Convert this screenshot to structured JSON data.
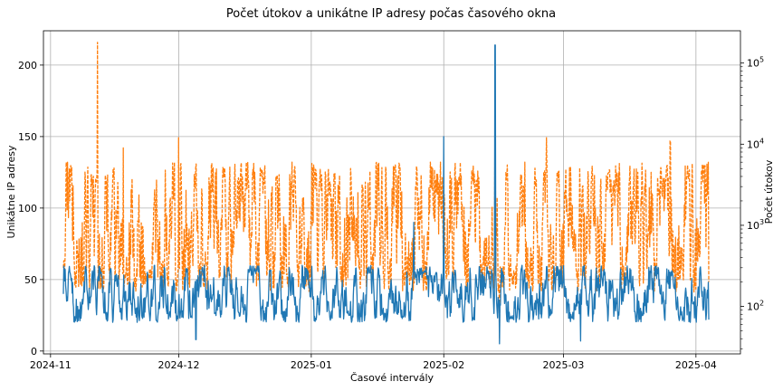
{
  "chart_data": {
    "type": "line",
    "title": "Počet útokov a unikátne IP adresy počas časového okna",
    "xlabel": "Časové intervály",
    "ylabel_left": "Unikátne IP adresy",
    "ylabel_right": "Počet útokov",
    "x_range": [
      "2024-11-04",
      "2025-04-04"
    ],
    "x_ticks": [
      {
        "date": "2024-11-01",
        "label": "2024-11"
      },
      {
        "date": "2024-12-01",
        "label": "2024-12"
      },
      {
        "date": "2025-01-01",
        "label": "2025-01"
      },
      {
        "date": "2025-02-01",
        "label": "2025-02"
      },
      {
        "date": "2025-03-01",
        "label": "2025-03"
      },
      {
        "date": "2025-04-01",
        "label": "2025-04"
      }
    ],
    "ylim_left": [
      -2,
      224
    ],
    "yticks_left": [
      0,
      50,
      100,
      150,
      200
    ],
    "yscale_right": "log",
    "ylim_right": [
      26,
      250000
    ],
    "yticks_right": [
      {
        "value": 100,
        "base": "10",
        "exp": "2"
      },
      {
        "value": 1000,
        "base": "10",
        "exp": "3"
      },
      {
        "value": 10000,
        "base": "10",
        "exp": "4"
      },
      {
        "value": 100000,
        "base": "10",
        "exp": "5"
      }
    ],
    "grid": true,
    "series": [
      {
        "axis": "right",
        "style": "dashed",
        "color": "#ff7f0e",
        "typical_range": [
          150,
          6000
        ],
        "points": [
          {
            "date": "2024-11-04",
            "value": 300
          },
          {
            "date": "2024-11-12",
            "value": 180000
          },
          {
            "date": "2024-11-18",
            "value": 9000
          },
          {
            "date": "2024-12-01",
            "value": 12000
          },
          {
            "date": "2025-02-13",
            "value": 11000
          },
          {
            "date": "2025-02-14",
            "value": 40
          },
          {
            "date": "2025-02-25",
            "value": 12000
          },
          {
            "date": "2025-03-26",
            "value": 11000
          },
          {
            "date": "2025-04-04",
            "value": 200
          }
        ]
      },
      {
        "axis": "left",
        "style": "solid",
        "color": "#1f77b4",
        "typical_range": [
          20,
          60
        ],
        "points": [
          {
            "date": "2024-11-04",
            "value": 40
          },
          {
            "date": "2024-12-05",
            "value": 8
          },
          {
            "date": "2025-01-25",
            "value": 90
          },
          {
            "date": "2025-02-01",
            "value": 150
          },
          {
            "date": "2025-02-13",
            "value": 214
          },
          {
            "date": "2025-02-14",
            "value": 5
          },
          {
            "date": "2025-03-05",
            "value": 7
          },
          {
            "date": "2025-04-04",
            "value": 22
          }
        ]
      }
    ]
  }
}
